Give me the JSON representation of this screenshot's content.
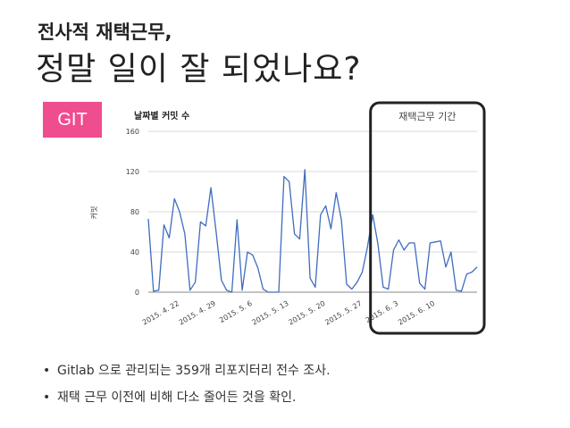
{
  "slide": {
    "subtitle": "전사적 재택근무,",
    "title": "정말 일이 잘 되었나요?",
    "badge": "GIT",
    "bullets": [
      "Gitlab 으로 관리되는 359개 리포지터리 전수 조사.",
      "재택 근무 이전에 비해 다소 줄어든 것을 확인."
    ],
    "bullet_glyph": "•"
  },
  "chart_data": {
    "type": "line",
    "title": "날짜별 커밋 수",
    "ylabel": "커밋",
    "xlabel": "",
    "ylim": [
      0,
      160
    ],
    "yticks": [
      0,
      40,
      80,
      120,
      160
    ],
    "grid": true,
    "line_color": "#3f6cbf",
    "x_start": "2015-04-16",
    "xtick_labels": [
      "2015. 4. 22",
      "2015. 4. 29",
      "2015. 5. 6",
      "2015. 5. 13",
      "2015. 5. 20",
      "2015. 5. 27",
      "2015. 6. 3",
      "2015. 6. 10"
    ],
    "xtick_index": [
      6,
      13,
      20,
      27,
      34,
      41,
      48,
      55
    ],
    "values": [
      73,
      1,
      2,
      67,
      54,
      93,
      80,
      58,
      2,
      10,
      70,
      66,
      104,
      60,
      12,
      2,
      0,
      72,
      2,
      40,
      37,
      24,
      3,
      0,
      0,
      0,
      115,
      110,
      58,
      53,
      122,
      14,
      5,
      77,
      86,
      63,
      99,
      72,
      8,
      3,
      10,
      20,
      45,
      77,
      48,
      5,
      3,
      42,
      52,
      42,
      49,
      49,
      9,
      3,
      49,
      50,
      51,
      25,
      40,
      2,
      1,
      18,
      20,
      25
    ],
    "annotation": {
      "label": "재택근무 기간",
      "start_index": 46,
      "end_index": 63,
      "color": "#222222"
    }
  }
}
